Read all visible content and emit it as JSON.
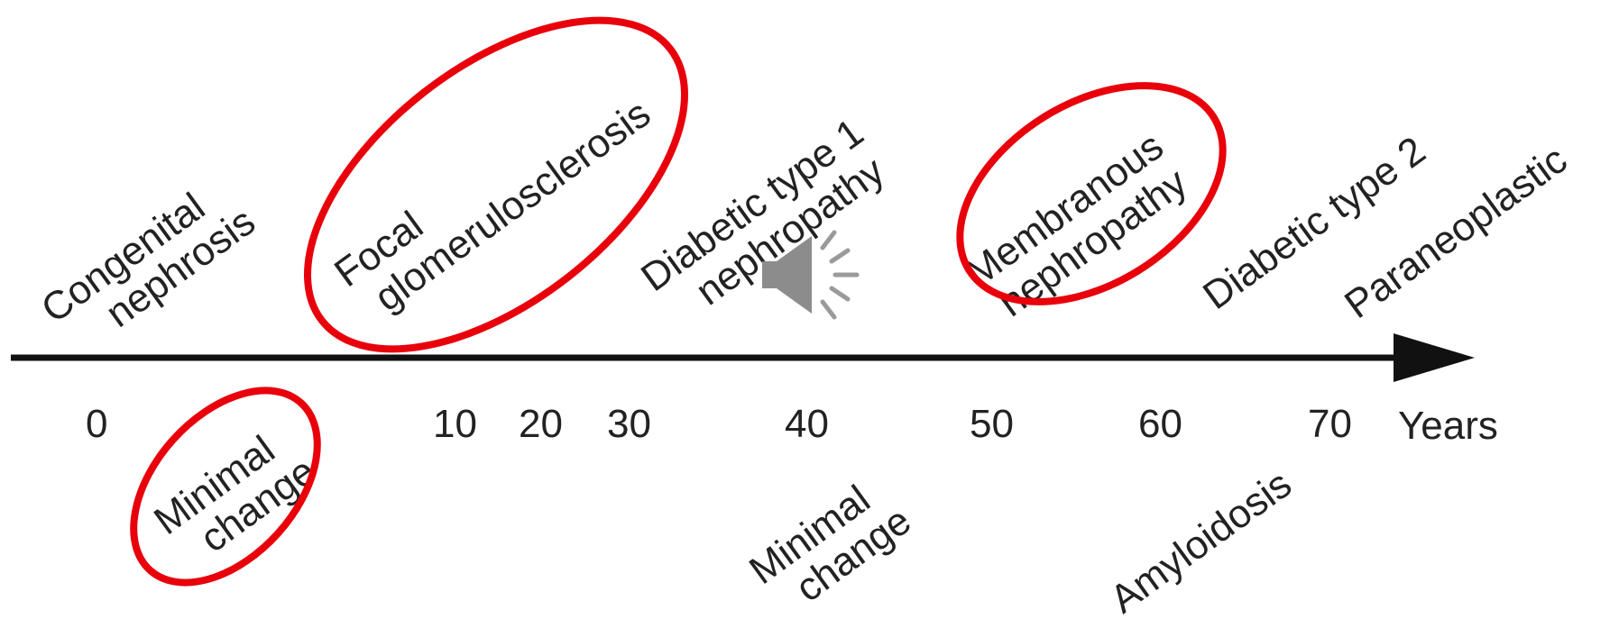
{
  "axis": {
    "unit_label": "Years",
    "ticks": [
      "0",
      "10",
      "20",
      "30",
      "40",
      "50",
      "60",
      "70"
    ]
  },
  "labels_above": {
    "congenital": [
      "Congenital",
      "nephrosis"
    ],
    "fsgs": [
      "Focal",
      "glomerulosclerosis"
    ],
    "diabetic1": [
      "Diabetic type 1",
      "nephropathy"
    ],
    "membranous": [
      "Membranous",
      "nephropathy"
    ],
    "diabetic2": [
      "Diabetic type 2"
    ],
    "paraneoplastic": [
      "Paraneoplastic"
    ]
  },
  "labels_below": {
    "minimal_child": [
      "Minimal",
      "change"
    ],
    "minimal_adult": [
      "Minimal",
      "change"
    ],
    "amyloidosis": [
      "Amyloidosis"
    ]
  },
  "colors": {
    "highlight": "#e8000b",
    "axis": "#111111",
    "text": "#222222",
    "speaker": "#8c8c8c"
  },
  "icons": {
    "speaker": "speaker-icon"
  }
}
